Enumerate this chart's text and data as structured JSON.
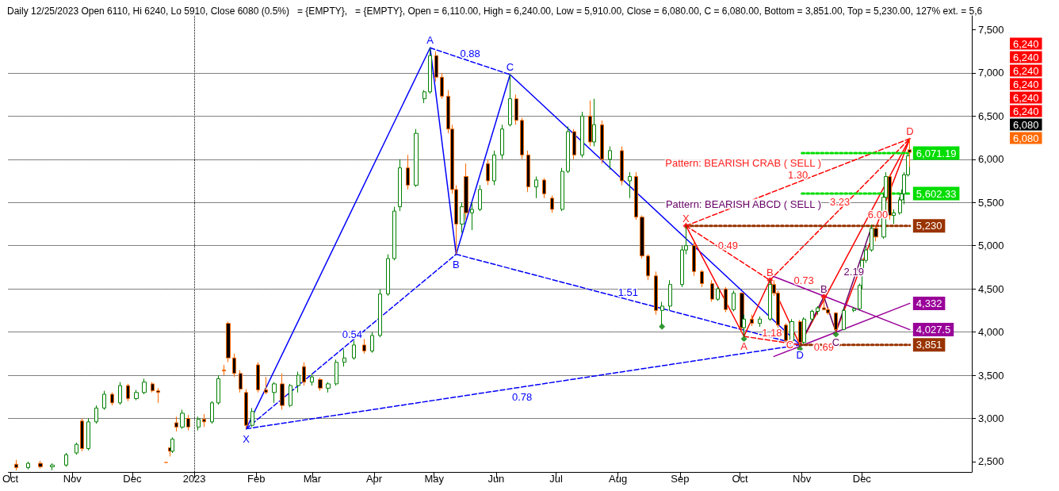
{
  "chart_data": {
    "type": "candlestick",
    "title": "Daily 12/25/2023 Open 6110, Hi 6240, Lo 5910, Close 6080 (0.5%)   = {EMPTY},   = {EMPTY}, Open = 6,110.00, High = 6,240.00, Low = 5,910.00, Close = 6,080.00, C = 6,080.00, Bottom = 3,851.00, Top = 5,230.00, 127% ext. = 5,6",
    "x": [
      "2022-10-04",
      "2022-10-10",
      "2022-10-16",
      "2022-10-22",
      "2022-10-29",
      "2022-11-03",
      "2022-11-06",
      "2022-11-09",
      "2022-11-13",
      "2022-11-17",
      "2022-11-21",
      "2022-11-25",
      "2022-11-29",
      "2022-12-03",
      "2022-12-07",
      "2022-12-11",
      "2022-12-14",
      "2022-12-18",
      "2022-12-20",
      "2022-12-21",
      "2022-12-23",
      "2022-12-26",
      "2022-12-29",
      "2023-01-03",
      "2023-01-06",
      "2023-01-10",
      "2023-01-13",
      "2023-01-16",
      "2023-01-18",
      "2023-01-21",
      "2023-01-24",
      "2023-01-27",
      "2023-01-30",
      "2023-02-02",
      "2023-02-06",
      "2023-02-10",
      "2023-02-14",
      "2023-02-18",
      "2023-02-22",
      "2023-02-25",
      "2023-03-01",
      "2023-03-05",
      "2023-03-09",
      "2023-03-13",
      "2023-03-17",
      "2023-03-22",
      "2023-03-27",
      "2023-03-31",
      "2023-04-04",
      "2023-04-08",
      "2023-04-11",
      "2023-04-14",
      "2023-04-18",
      "2023-04-22",
      "2023-04-26",
      "2023-04-29",
      "2023-05-02",
      "2023-05-05",
      "2023-05-08",
      "2023-05-10",
      "2023-05-12",
      "2023-05-15",
      "2023-05-17",
      "2023-05-20",
      "2023-05-24",
      "2023-05-28",
      "2023-05-31",
      "2023-06-04",
      "2023-06-08",
      "2023-06-11",
      "2023-06-14",
      "2023-06-17",
      "2023-06-21",
      "2023-06-25",
      "2023-06-29",
      "2023-07-04",
      "2023-07-07",
      "2023-07-10",
      "2023-07-14",
      "2023-07-18",
      "2023-07-20",
      "2023-07-24",
      "2023-07-28",
      "2023-08-03",
      "2023-08-07",
      "2023-08-10",
      "2023-08-13",
      "2023-08-16",
      "2023-08-20",
      "2023-08-23",
      "2023-08-27",
      "2023-09-02",
      "2023-09-04",
      "2023-09-08",
      "2023-09-12",
      "2023-09-17",
      "2023-09-20",
      "2023-09-24",
      "2023-09-28",
      "2023-10-02",
      "2023-10-03",
      "2023-10-07",
      "2023-10-11",
      "2023-10-16",
      "2023-10-18",
      "2023-10-20",
      "2023-10-24",
      "2023-10-27",
      "2023-10-31",
      "2023-11-02",
      "2023-11-06",
      "2023-11-09",
      "2023-11-12",
      "2023-11-14",
      "2023-11-18",
      "2023-11-22",
      "2023-11-27",
      "2023-11-30",
      "2023-12-01",
      "2023-12-03",
      "2023-12-06",
      "2023-12-08",
      "2023-12-12",
      "2023-12-13",
      "2023-12-15",
      "2023-12-17",
      "2023-12-20",
      "2023-12-21",
      "2023-12-22",
      "2023-12-24",
      "2023-12-25"
    ],
    "ohlc": [
      [
        2470,
        2520,
        2400,
        2430
      ],
      [
        2430,
        2500,
        2410,
        2480
      ],
      [
        2480,
        2510,
        2420,
        2440
      ],
      [
        2440,
        2480,
        2400,
        2460
      ],
      [
        2460,
        2600,
        2440,
        2580
      ],
      [
        2600,
        2720,
        2580,
        2700
      ],
      [
        2970,
        3000,
        2620,
        2650
      ],
      [
        2650,
        3000,
        2630,
        2960
      ],
      [
        2960,
        3150,
        2940,
        3120
      ],
      [
        3120,
        3320,
        3100,
        3280
      ],
      [
        3280,
        3300,
        3150,
        3180
      ],
      [
        3180,
        3420,
        3160,
        3380
      ],
      [
        3380,
        3400,
        3200,
        3230
      ],
      [
        3230,
        3330,
        3210,
        3300
      ],
      [
        3300,
        3460,
        3280,
        3420
      ],
      [
        3400,
        3420,
        3300,
        3320
      ],
      [
        3320,
        3350,
        3180,
        3300
      ],
      [
        2490,
        2490,
        2490,
        2490
      ],
      [
        2660,
        2660,
        2560,
        2620
      ],
      [
        2620,
        2780,
        2600,
        2760
      ],
      [
        2950,
        3020,
        2850,
        2900
      ],
      [
        2900,
        3100,
        2880,
        3060
      ],
      [
        3000,
        3040,
        2860,
        2900
      ],
      [
        2900,
        3020,
        2860,
        2990
      ],
      [
        2990,
        3050,
        2900,
        2960
      ],
      [
        2960,
        3200,
        2940,
        3180
      ],
      [
        3180,
        3500,
        3160,
        3460
      ],
      [
        3560,
        3620,
        3500,
        3550
      ],
      [
        4100,
        4120,
        3650,
        3700
      ],
      [
        3700,
        3750,
        3480,
        3520
      ],
      [
        3520,
        3560,
        3300,
        3340
      ],
      [
        3300,
        3340,
        2880,
        2920
      ],
      [
        2920,
        3120,
        2900,
        3080
      ],
      [
        3620,
        3650,
        3300,
        3330
      ],
      [
        3330,
        3480,
        3280,
        3300
      ],
      [
        3300,
        3420,
        3180,
        3400
      ],
      [
        3400,
        3520,
        3100,
        3150
      ],
      [
        3150,
        3400,
        3130,
        3380
      ],
      [
        3380,
        3540,
        3300,
        3500
      ],
      [
        3600,
        3650,
        3380,
        3420
      ],
      [
        3420,
        3520,
        3380,
        3480
      ],
      [
        3450,
        3470,
        3320,
        3350
      ],
      [
        3350,
        3420,
        3300,
        3400
      ],
      [
        3400,
        3680,
        3380,
        3650
      ],
      [
        3650,
        3800,
        3600,
        3700
      ],
      [
        3700,
        3900,
        3680,
        3850
      ],
      [
        3850,
        3920,
        3750,
        3780
      ],
      [
        3780,
        4000,
        3760,
        3960
      ],
      [
        3960,
        4500,
        3940,
        4440
      ],
      [
        4440,
        4900,
        4420,
        4850
      ],
      [
        4850,
        5450,
        4830,
        5400
      ],
      [
        5450,
        6000,
        5400,
        5900
      ],
      [
        5900,
        6050,
        5650,
        5700
      ],
      [
        5700,
        6350,
        5680,
        6300
      ],
      [
        6700,
        6800,
        6650,
        6780
      ],
      [
        6780,
        7290,
        6760,
        7200
      ],
      [
        7200,
        7250,
        6900,
        6950
      ],
      [
        6950,
        7000,
        6700,
        6730
      ],
      [
        6730,
        6800,
        6300,
        6350
      ],
      [
        6350,
        6400,
        5600,
        5650
      ],
      [
        5650,
        5700,
        4900,
        5250
      ],
      [
        5250,
        5500,
        5150,
        5450
      ],
      [
        5800,
        5950,
        5300,
        5380
      ],
      [
        5380,
        5500,
        5180,
        5420
      ],
      [
        5420,
        5700,
        5400,
        5650
      ],
      [
        5950,
        6000,
        5700,
        5750
      ],
      [
        5750,
        6100,
        5700,
        6050
      ],
      [
        6050,
        6400,
        6000,
        6350
      ],
      [
        6400,
        6980,
        6380,
        6700
      ],
      [
        6700,
        6750,
        6400,
        6450
      ],
      [
        6450,
        6480,
        6000,
        6050
      ],
      [
        6050,
        6100,
        5620,
        5680
      ],
      [
        5680,
        5800,
        5550,
        5760
      ],
      [
        5760,
        5780,
        5550,
        5600
      ],
      [
        5550,
        5580,
        5380,
        5420
      ],
      [
        5420,
        5900,
        5400,
        5860
      ],
      [
        5860,
        6380,
        5840,
        6320
      ],
      [
        6320,
        6350,
        6000,
        6050
      ],
      [
        6050,
        6550,
        6020,
        6500
      ],
      [
        6500,
        6680,
        6150,
        6200
      ],
      [
        6200,
        6700,
        6150,
        6400
      ],
      [
        6400,
        6450,
        5950,
        6000
      ],
      [
        6000,
        6150,
        5880,
        6100
      ],
      [
        6100,
        6150,
        5700,
        5750
      ],
      [
        5750,
        5850,
        5550,
        5800
      ],
      [
        5800,
        5850,
        5300,
        5330
      ],
      [
        5330,
        5350,
        4850,
        4880
      ],
      [
        4880,
        4900,
        4600,
        4650
      ],
      [
        4650,
        4700,
        4200,
        4250
      ],
      [
        4250,
        4350,
        4080,
        4300
      ],
      [
        4300,
        4600,
        4250,
        4550
      ],
      [
        4550,
        5000,
        4520,
        4950
      ],
      [
        4950,
        5230,
        4900,
        5000
      ],
      [
        5000,
        5050,
        4650,
        4700
      ],
      [
        4700,
        4720,
        4520,
        4560
      ],
      [
        4560,
        4600,
        4350,
        4380
      ],
      [
        4380,
        4520,
        4360,
        4500
      ],
      [
        4500,
        4520,
        4230,
        4260
      ],
      [
        4260,
        4480,
        4240,
        4450
      ],
      [
        4450,
        4460,
        4000,
        4050
      ],
      [
        4050,
        4200,
        3950,
        4150
      ],
      [
        4150,
        4200,
        4070,
        4100
      ],
      [
        4100,
        4180,
        4060,
        4150
      ],
      [
        4150,
        4600,
        4130,
        4550
      ],
      [
        4550,
        4600,
        4420,
        4450
      ],
      [
        4450,
        4480,
        4050,
        4080
      ],
      [
        4080,
        4100,
        3870,
        3900
      ],
      [
        3900,
        4150,
        3880,
        4120
      ],
      [
        4120,
        4140,
        3851,
        3880
      ],
      [
        3880,
        4170,
        3860,
        4150
      ],
      [
        4150,
        4260,
        4120,
        4240
      ],
      [
        4240,
        4300,
        4200,
        4280
      ],
      [
        4280,
        4410,
        4250,
        4260
      ],
      [
        4260,
        4280,
        4200,
        4220
      ],
      [
        4220,
        4230,
        4000,
        4030
      ],
      [
        4030,
        4280,
        4020,
        4250
      ],
      [
        4250,
        4290,
        4230,
        4270
      ],
      [
        4270,
        4560,
        4250,
        4540
      ],
      [
        4700,
        4850,
        4500,
        4830
      ],
      [
        4830,
        5000,
        4800,
        4950
      ],
      [
        4950,
        5240,
        4930,
        5200
      ],
      [
        5200,
        5220,
        5050,
        5100
      ],
      [
        5100,
        5600,
        5080,
        5560
      ],
      [
        5560,
        5850,
        5540,
        5800
      ],
      [
        5800,
        5820,
        5300,
        5350
      ],
      [
        5350,
        5420,
        5250,
        5380
      ],
      [
        5380,
        5560,
        5360,
        5530
      ],
      [
        5530,
        5650,
        5450,
        5600
      ],
      [
        5600,
        5850,
        5480,
        5820
      ],
      [
        5820,
        6060,
        5800,
        6040
      ],
      [
        6110,
        6240,
        5910,
        6080
      ]
    ],
    "series": [
      {
        "type": "line",
        "color": "#0000ff",
        "x": [
          "2023-01-27",
          "2023-04-29",
          "2023-05-12",
          "2023-06-08",
          "2023-10-31"
        ],
        "values": [
          2880,
          7290,
          4900,
          6980,
          3851
        ]
      },
      {
        "type": "line",
        "color": "#0000ff",
        "line_style": "dashed",
        "x": [
          "2023-01-27",
          "2023-05-12"
        ],
        "values": [
          2880,
          4900
        ]
      },
      {
        "type": "line",
        "color": "#0000ff",
        "line_style": "dashed",
        "x": [
          "2023-04-29",
          "2023-06-08"
        ],
        "values": [
          7290,
          6980
        ]
      },
      {
        "type": "line",
        "color": "#0000ff",
        "line_style": "dashed",
        "x": [
          "2023-05-12",
          "2023-10-31"
        ],
        "values": [
          4900,
          3851
        ]
      },
      {
        "type": "line",
        "color": "#0000ff",
        "line_style": "dashed",
        "x": [
          "2023-01-27",
          "2023-10-31"
        ],
        "values": [
          2880,
          3851
        ]
      },
      {
        "type": "line",
        "color": "#ff0000",
        "x": [
          "2023-09-04",
          "2023-10-03",
          "2023-10-16",
          "2023-10-31",
          "2023-12-25"
        ],
        "values": [
          5230,
          3950,
          4600,
          3851,
          6240
        ]
      },
      {
        "type": "line",
        "color": "#ff0000",
        "line_style": "dashed",
        "x": [
          "2023-09-04",
          "2023-10-16"
        ],
        "values": [
          5230,
          4600
        ]
      },
      {
        "type": "line",
        "color": "#ff0000",
        "line_style": "dashed",
        "x": [
          "2023-10-03",
          "2023-10-31"
        ],
        "values": [
          3950,
          3851
        ]
      },
      {
        "type": "line",
        "color": "#ff0000",
        "line_style": "dashed",
        "x": [
          "2023-10-16",
          "2023-12-25"
        ],
        "values": [
          4600,
          6240
        ]
      },
      {
        "type": "line",
        "color": "#ff0000",
        "line_style": "dashed",
        "x": [
          "2023-09-04",
          "2023-12-25"
        ],
        "values": [
          5230,
          6240
        ]
      },
      {
        "type": "line",
        "color": "#ff0000",
        "x": [
          "2023-11-18",
          "2023-12-25"
        ],
        "values": [
          4000,
          6240
        ]
      },
      {
        "type": "line",
        "color": "#660066",
        "x": [
          "2023-10-31",
          "2023-11-12",
          "2023-11-18",
          "2023-12-06"
        ],
        "values": [
          3851,
          4410,
          4000,
          5230
        ]
      },
      {
        "type": "line",
        "color": "#990099",
        "x": [
          "2023-10-16",
          "2023-12-25"
        ],
        "values": [
          4660,
          4027.5
        ],
        "value_labels": [
          null,
          "4,027.5"
        ]
      },
      {
        "type": "line",
        "color": "#990099",
        "x": [
          "2023-10-18",
          "2023-12-25"
        ],
        "values": [
          3717,
          4332
        ],
        "value_labels": [
          null,
          "4,332"
        ]
      },
      {
        "type": "line",
        "color": "#00dd00",
        "line_style": "dotted",
        "x": [
          "2023-11-01",
          "2023-12-25"
        ],
        "values": [
          6071.19,
          6071.19
        ],
        "value_labels": [
          null,
          "6,071.19"
        ]
      },
      {
        "type": "line",
        "color": "#00dd00",
        "line_style": "dotted",
        "x": [
          "2023-11-01",
          "2023-12-25"
        ],
        "values": [
          5602.33,
          5602.33
        ],
        "value_labels": [
          null,
          "5,602.33"
        ]
      },
      {
        "type": "line",
        "color": "#993300",
        "line_style": "dotted",
        "x": [
          "2023-09-04",
          "2023-12-25"
        ],
        "values": [
          5230,
          5230
        ],
        "value_labels": [
          null,
          "5,230"
        ]
      },
      {
        "type": "line",
        "color": "#993300",
        "line_style": "dotted",
        "x": [
          "2023-10-31",
          "2023-12-25"
        ],
        "values": [
          3851,
          3851
        ],
        "value_labels": [
          null,
          "3,851"
        ]
      },
      {
        "type": "scatter",
        "color": "#008000",
        "marker": "diamond",
        "x": [
          "2023-08-23",
          "2023-10-03",
          "2023-10-31",
          "2023-11-18"
        ],
        "values": [
          4063,
          3920,
          3805,
          3974
        ]
      },
      {
        "type": "scatter",
        "color": "#ff0000",
        "marker": "diamond",
        "x": [
          "2023-09-04",
          "2023-10-16",
          "2023-11-12"
        ],
        "values": [
          5230,
          4600,
          4410
        ]
      }
    ],
    "xlim": [
      "2022-09-30",
      "2024-01-25"
    ],
    "xticks": [
      {
        "value": "2022-10-01",
        "label": "Oct"
      },
      {
        "value": "2022-11-01",
        "label": "Nov"
      },
      {
        "value": "2022-12-01",
        "label": "Dec"
      },
      {
        "value": "2023-01-01",
        "label": "2023"
      },
      {
        "value": "2023-02-01",
        "label": "Feb"
      },
      {
        "value": "2023-03-01",
        "label": "Mar"
      },
      {
        "value": "2023-04-01",
        "label": "Apr"
      },
      {
        "value": "2023-05-01",
        "label": "May"
      },
      {
        "value": "2023-06-01",
        "label": "Jun"
      },
      {
        "value": "2023-07-01",
        "label": "Jul"
      },
      {
        "value": "2023-08-01",
        "label": "Aug"
      },
      {
        "value": "2023-09-01",
        "label": "Sep"
      },
      {
        "value": "2023-10-01",
        "label": "Oct"
      },
      {
        "value": "2023-11-01",
        "label": "Nov"
      },
      {
        "value": "2023-12-01",
        "label": "Dec"
      }
    ],
    "ylim": [
      2380,
      7660
    ],
    "yticks": [
      {
        "value": 2500,
        "label": "2,500"
      },
      {
        "value": 3000,
        "label": "3,000"
      },
      {
        "value": 3500,
        "label": "3,500"
      },
      {
        "value": 4000,
        "label": "4,000"
      },
      {
        "value": 4500,
        "label": "4,500"
      },
      {
        "value": 5000,
        "label": "5,000"
      },
      {
        "value": 5500,
        "label": "5,500"
      },
      {
        "value": 6000,
        "label": "6,000"
      },
      {
        "value": 6500,
        "label": "6,500"
      },
      {
        "value": 7000,
        "label": "7,000"
      },
      {
        "value": 7500,
        "label": "7,500"
      }
    ],
    "grid": "y",
    "ref_lines": [
      {
        "axis": "x",
        "value": "2023-01-01",
        "color": "#000000",
        "line_style": "dotted"
      }
    ],
    "annotations": [
      {
        "text": "X",
        "x": "2023-01-27",
        "y": 2880
      },
      {
        "text": "A",
        "x": "2023-04-29",
        "y": 7290
      },
      {
        "text": "B",
        "x": "2023-05-12",
        "y": 4900
      },
      {
        "text": "C",
        "x": "2023-06-08",
        "y": 6980
      },
      {
        "text": "D",
        "x": "2023-10-31",
        "y": 3851
      },
      {
        "text": "0.54",
        "x": "2023-03-21",
        "y": 3890
      },
      {
        "text": "0.88",
        "x": "2023-05-19",
        "y": 7135
      },
      {
        "text": "1.51",
        "x": "2023-08-06",
        "y": 4376
      },
      {
        "text": "0.78",
        "x": "2023-06-14",
        "y": 3366
      },
      {
        "text": "X",
        "x": "2023-09-04",
        "y": 5230
      },
      {
        "text": "A",
        "x": "2023-10-03",
        "y": 3950
      },
      {
        "text": "B",
        "x": "2023-10-16",
        "y": 4600
      },
      {
        "text": "C",
        "x": "2023-10-31",
        "y": 3851
      },
      {
        "text": "D",
        "x": "2023-12-25",
        "y": 6240
      },
      {
        "text": "0.49",
        "x": "2023-09-25",
        "y": 4915
      },
      {
        "text": "1.18",
        "x": "2023-10-17",
        "y": 3900
      },
      {
        "text": "0.73",
        "x": "2023-11-02",
        "y": 4506
      },
      {
        "text": "0.69",
        "x": "2023-11-12",
        "y": 3943
      },
      {
        "text": "3.23",
        "x": "2023-11-20",
        "y": 5420
      },
      {
        "text": "6.00",
        "x": "2023-12-09",
        "y": 5271
      },
      {
        "text": "1.30",
        "x": "2023-10-30",
        "y": 5735
      },
      {
        "text": "B",
        "x": "2023-11-12",
        "y": 4410
      },
      {
        "text": "C",
        "x": "2023-11-18",
        "y": 4000
      },
      {
        "text": "2.19",
        "x": "2023-11-27",
        "y": 4615
      },
      "Pattern: BEARISH CRAB ( SELL )",
      "Pattern: BEARISH ABCD ( SELL )",
      "6,240",
      "6,240",
      "6,240",
      "6,240",
      "6,240",
      "6,240",
      "6,080",
      "6,080"
    ]
  }
}
